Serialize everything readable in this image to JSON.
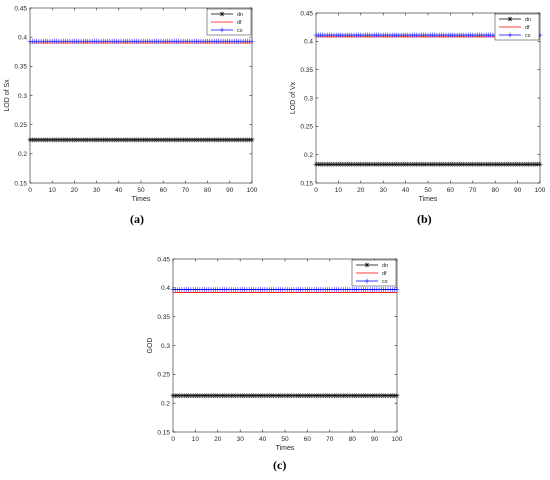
{
  "chart_data": [
    {
      "type": "line",
      "caption": "(a)",
      "xlabel": "Times",
      "ylabel": "LOD of Sx",
      "xlim": [
        0,
        100
      ],
      "ylim": [
        0.15,
        0.45
      ],
      "xticks": [
        0,
        10,
        20,
        30,
        40,
        50,
        60,
        70,
        80,
        90,
        100
      ],
      "yticks": [
        0.15,
        0.2,
        0.25,
        0.3,
        0.35,
        0.4,
        0.45
      ],
      "legend_position": "top-right",
      "grid": false,
      "series": [
        {
          "name": "dn",
          "color": "#000000",
          "marker": "asterisk",
          "y_constant": 0.224
        },
        {
          "name": "df",
          "color": "#ff0000",
          "marker": "none",
          "y_constant": 0.39
        },
        {
          "name": "cs",
          "color": "#0000ff",
          "marker": "plus",
          "y_constant": 0.393
        }
      ]
    },
    {
      "type": "line",
      "caption": "(b)",
      "xlabel": "Times",
      "ylabel": "LOD of Vx",
      "xlim": [
        0,
        100
      ],
      "ylim": [
        0.15,
        0.45
      ],
      "xticks": [
        0,
        10,
        20,
        30,
        40,
        50,
        60,
        70,
        80,
        90,
        100
      ],
      "yticks": [
        0.15,
        0.2,
        0.25,
        0.3,
        0.35,
        0.4,
        0.45
      ],
      "legend_position": "top-right",
      "grid": false,
      "series": [
        {
          "name": "dn",
          "color": "#000000",
          "marker": "asterisk",
          "y_constant": 0.183
        },
        {
          "name": "df",
          "color": "#ff0000",
          "marker": "none",
          "y_constant": 0.408
        },
        {
          "name": "cs",
          "color": "#0000ff",
          "marker": "plus",
          "y_constant": 0.411
        }
      ]
    },
    {
      "type": "line",
      "caption": "(c)",
      "xlabel": "Times",
      "ylabel": "GOD",
      "xlim": [
        0,
        100
      ],
      "ylim": [
        0.15,
        0.45
      ],
      "xticks": [
        0,
        10,
        20,
        30,
        40,
        50,
        60,
        70,
        80,
        90,
        100
      ],
      "yticks": [
        0.15,
        0.2,
        0.25,
        0.3,
        0.35,
        0.4,
        0.45
      ],
      "legend_position": "top-right",
      "grid": false,
      "series": [
        {
          "name": "dn",
          "color": "#000000",
          "marker": "asterisk",
          "y_constant": 0.213
        },
        {
          "name": "df",
          "color": "#ff0000",
          "marker": "none",
          "y_constant": 0.392
        },
        {
          "name": "cs",
          "color": "#0000ff",
          "marker": "plus",
          "y_constant": 0.397
        }
      ]
    }
  ]
}
